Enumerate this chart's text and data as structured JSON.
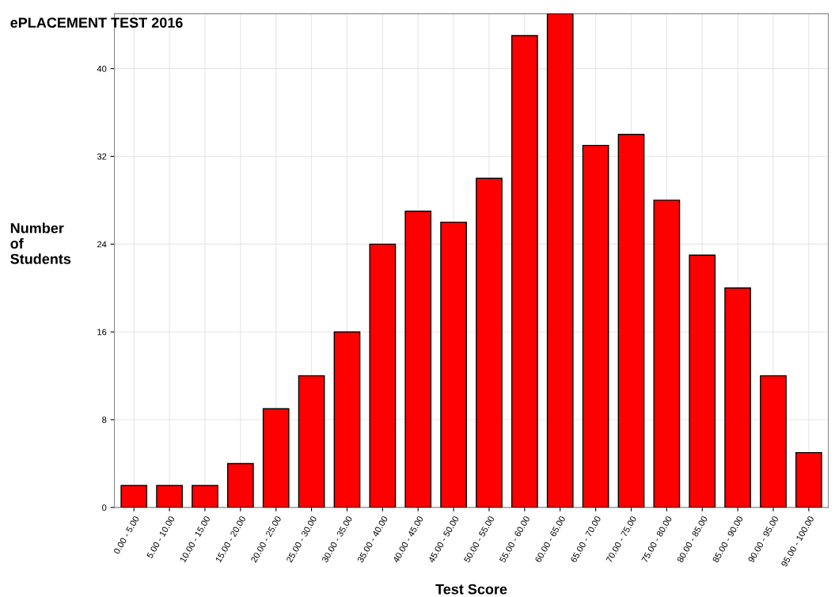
{
  "chart_data": {
    "type": "bar",
    "title": "ePLACEMENT TEST 2016",
    "xlabel": "Test Score",
    "ylabel": "Number\nof\nStudents",
    "categories": [
      "0.00 - 5.00",
      "5.00 - 10.00",
      "10.00 - 15.00",
      "15.00 - 20.00",
      "20.00 - 25.00",
      "25.00 - 30.00",
      "30.00 - 35.00",
      "35.00 - 40.00",
      "40.00 - 45.00",
      "45.00 - 50.00",
      "50.00 - 55.00",
      "55.00 - 60.00",
      "60.00 - 65.00",
      "65.00 - 70.00",
      "70.00 - 75.00",
      "75.00 - 80.00",
      "80.00 - 85.00",
      "85.00 - 90.00",
      "90.00 - 95.00",
      "95.00 - 100.00"
    ],
    "values": [
      2,
      2,
      2,
      4,
      9,
      12,
      16,
      24,
      27,
      26,
      30,
      43,
      45,
      33,
      34,
      28,
      23,
      20,
      12,
      5
    ],
    "color": "#ff0000",
    "ylim": [
      0,
      45
    ],
    "yticks": [
      0,
      8,
      16,
      24,
      32,
      40
    ],
    "grid": true
  }
}
